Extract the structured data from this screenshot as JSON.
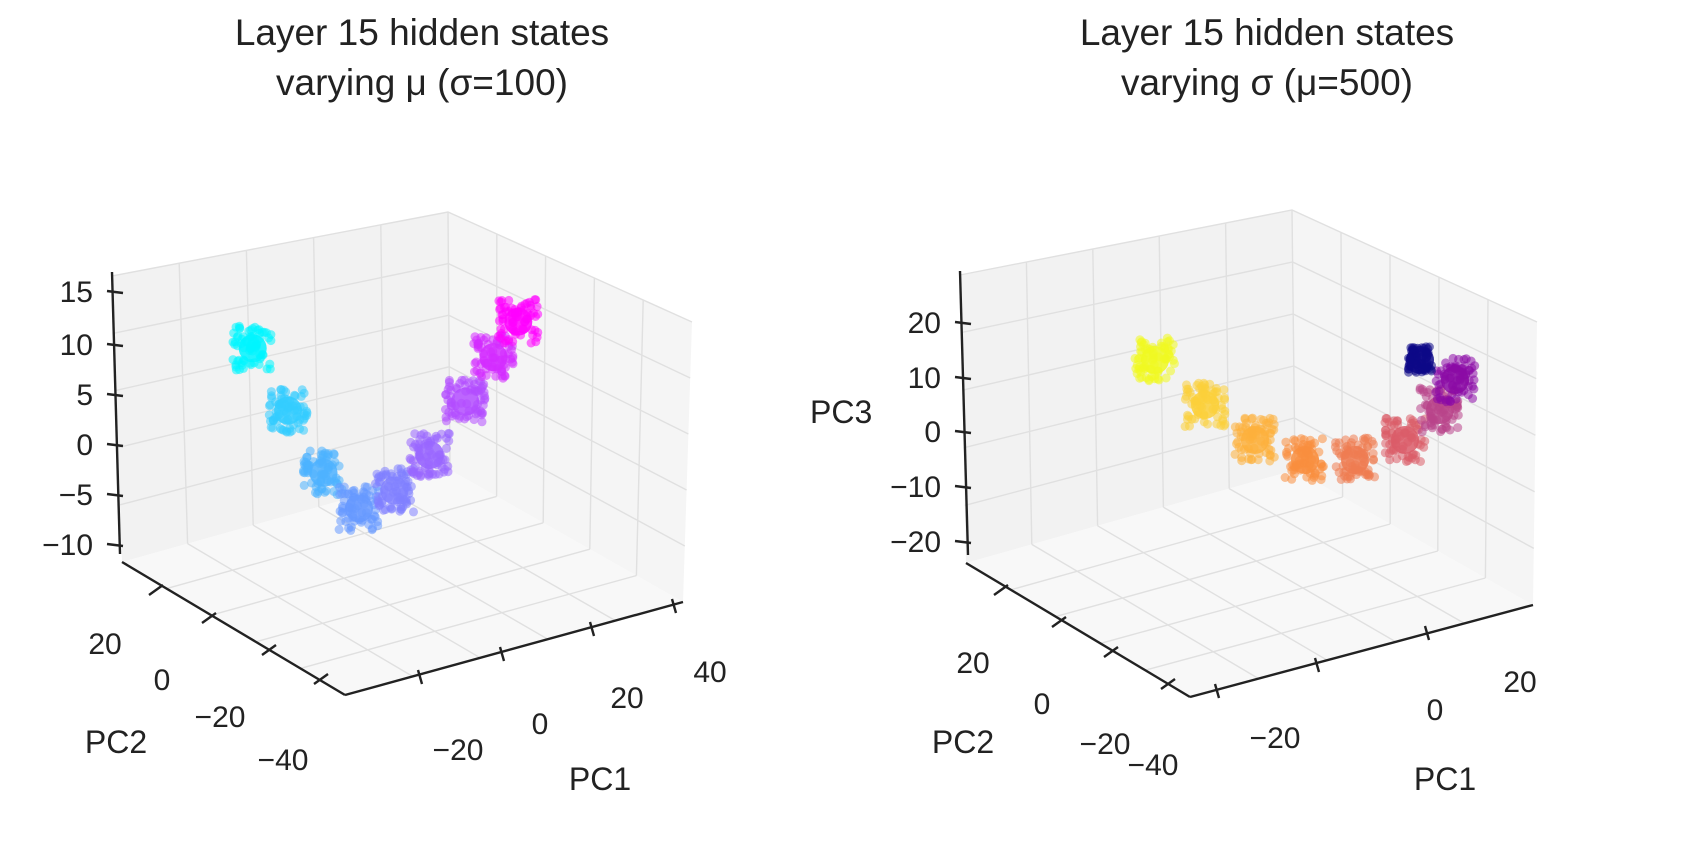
{
  "chart_data": [
    {
      "type": "scatter",
      "subtype": "3d",
      "title": [
        "Layer 15 hidden states",
        "varying μ (σ=100)"
      ],
      "xlabel": "PC1",
      "ylabel": "PC2",
      "zlabel": "",
      "x_ticks": [
        "−20",
        "0",
        "20",
        "40"
      ],
      "y_ticks": [
        "20",
        "0",
        "−20",
        "−40"
      ],
      "z_ticks": [
        "15",
        "10",
        "5",
        "0",
        "−5",
        "−10"
      ],
      "x_range": [
        -40,
        50
      ],
      "y_range": [
        -50,
        35
      ],
      "z_range": [
        -12,
        17
      ],
      "grid": true,
      "colormap": "cool",
      "series": [
        {
          "x": -35,
          "y": 0,
          "z": 10,
          "color": "#00f5ff"
        },
        {
          "x": -25,
          "y": 0,
          "z": 3,
          "color": "#33ccff"
        },
        {
          "x": -15,
          "y": 0,
          "z": -4,
          "color": "#4db2ff"
        },
        {
          "x": -5,
          "y": 0,
          "z": -8,
          "color": "#6699ff"
        },
        {
          "x": 5,
          "y": 0,
          "z": -6,
          "color": "#8080ff"
        },
        {
          "x": 15,
          "y": 0,
          "z": -2,
          "color": "#9966ff"
        },
        {
          "x": 25,
          "y": 0,
          "z": 4,
          "color": "#b34cff"
        },
        {
          "x": 33,
          "y": 0,
          "z": 9,
          "color": "#d42bff"
        },
        {
          "x": 40,
          "y": 0,
          "z": 13,
          "color": "#ff00ff"
        }
      ]
    },
    {
      "type": "scatter",
      "subtype": "3d",
      "title": [
        "Layer 15 hidden states",
        "varying σ (μ=500)"
      ],
      "xlabel": "PC1",
      "ylabel": "PC2",
      "zlabel": "PC3",
      "x_ticks": [
        "−20",
        "0",
        "20"
      ],
      "y_ticks": [
        "20",
        "0",
        "−20",
        "−40"
      ],
      "z_ticks": [
        "20",
        "10",
        "0",
        "−10",
        "−20"
      ],
      "x_range": [
        -40,
        35
      ],
      "y_range": [
        -50,
        35
      ],
      "z_range": [
        -25,
        27
      ],
      "grid": true,
      "colormap": "plasma_r",
      "series": [
        {
          "x": -35,
          "y": 0,
          "z": 12,
          "color": "#f0f921"
        },
        {
          "x": -25,
          "y": 0,
          "z": 3,
          "color": "#fbd03a"
        },
        {
          "x": -15,
          "y": 0,
          "z": -4,
          "color": "#fdb03c"
        },
        {
          "x": -5,
          "y": 0,
          "z": -8,
          "color": "#f98e3e"
        },
        {
          "x": 5,
          "y": 0,
          "z": -8,
          "color": "#ee7b51"
        },
        {
          "x": 15,
          "y": 0,
          "z": -4,
          "color": "#db5c68"
        },
        {
          "x": 22,
          "y": 0,
          "z": 2,
          "color": "#b8438a"
        },
        {
          "x": 25,
          "y": 0,
          "z": 8,
          "color": "#8b0aa5"
        },
        {
          "x": 18,
          "y": 0,
          "z": 12,
          "color": "#0d0887"
        }
      ]
    }
  ]
}
